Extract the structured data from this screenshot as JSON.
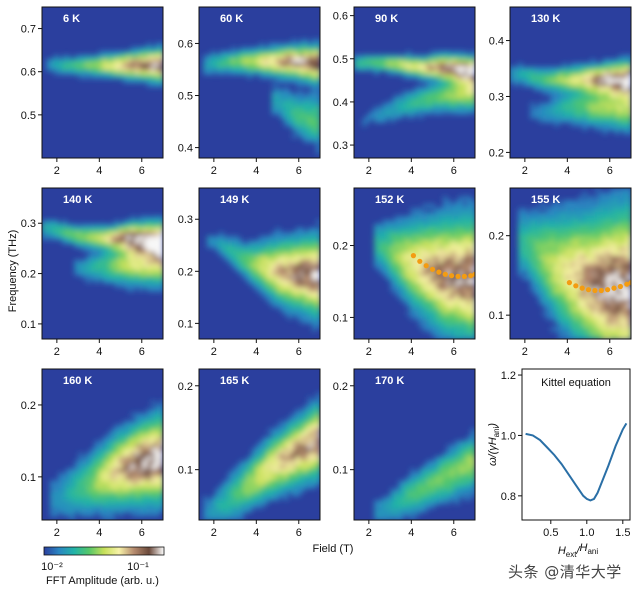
{
  "chart_data": {
    "type": "heatmap",
    "shared_xlabel": "Field (T)",
    "shared_ylabel": "Frequency (THz)",
    "x_ticks": [
      2,
      4,
      6
    ],
    "x_range": [
      1.3,
      7.0
    ],
    "colorbar": {
      "label": "FFT Amplitude (arb. u.)",
      "scale": "log",
      "ticks": [
        "10⁻²",
        "10⁻¹"
      ],
      "colors": [
        "#2b3f9e",
        "#2a86c2",
        "#22b3a8",
        "#55c76a",
        "#c7e05a",
        "#f7f2a8",
        "#b58a6e",
        "#6b4a3b",
        "#ffffff"
      ]
    },
    "panels": [
      {
        "label": "6 K",
        "ylim": [
          0.4,
          0.75
        ],
        "yticks": [
          0.5,
          0.6,
          0.7
        ],
        "yfmt": 1,
        "branches": [
          {
            "x": [
              1.7,
              2.6,
              4.0,
              5.5,
              7.0
            ],
            "y": [
              0.615,
              0.615,
              0.615,
              0.615,
              0.615
            ],
            "w": [
              0.015,
              0.012,
              0.014,
              0.018,
              0.022
            ],
            "a": [
              0.15,
              0.35,
              0.55,
              0.85,
              1.0
            ]
          }
        ]
      },
      {
        "label": "60 K",
        "ylim": [
          0.38,
          0.67
        ],
        "yticks": [
          0.4,
          0.5,
          0.6
        ],
        "yfmt": 1,
        "branches": [
          {
            "x": [
              1.8,
              2.7,
              4.0,
              5.5,
              7.0
            ],
            "y": [
              0.56,
              0.565,
              0.565,
              0.565,
              0.56
            ],
            "w": [
              0.014,
              0.012,
              0.014,
              0.017,
              0.02
            ],
            "a": [
              0.2,
              0.4,
              0.6,
              0.9,
              1.0
            ]
          },
          {
            "x": [
              5.0,
              6.0,
              7.0
            ],
            "y": [
              0.49,
              0.46,
              0.45
            ],
            "w": [
              0.02,
              0.025,
              0.03
            ],
            "a": [
              0.2,
              0.35,
              0.4
            ]
          }
        ]
      },
      {
        "label": "90 K",
        "ylim": [
          0.27,
          0.62
        ],
        "yticks": [
          0.3,
          0.4,
          0.5,
          0.6
        ],
        "yfmt": 1,
        "branches": [
          {
            "x": [
              1.6,
              3.0,
              4.5,
              5.5,
              7.0
            ],
            "y": [
              0.49,
              0.49,
              0.48,
              0.48,
              0.47
            ],
            "w": [
              0.012,
              0.012,
              0.014,
              0.017,
              0.02
            ],
            "a": [
              0.3,
              0.5,
              0.7,
              0.95,
              1.0
            ]
          },
          {
            "x": [
              2.0,
              3.5,
              5.0,
              6.5,
              7.0
            ],
            "y": [
              0.36,
              0.39,
              0.41,
              0.42,
              0.42
            ],
            "w": [
              0.015,
              0.018,
              0.02,
              0.025,
              0.025
            ],
            "a": [
              0.1,
              0.25,
              0.4,
              0.55,
              0.55
            ]
          }
        ]
      },
      {
        "label": "130 K",
        "ylim": [
          0.19,
          0.46
        ],
        "yticks": [
          0.2,
          0.3,
          0.4
        ],
        "yfmt": 1,
        "branches": [
          {
            "x": [
              1.6,
              3.0,
              4.5,
              5.5,
              7.0
            ],
            "y": [
              0.34,
              0.33,
              0.33,
              0.33,
              0.33
            ],
            "w": [
              0.012,
              0.012,
              0.014,
              0.016,
              0.02
            ],
            "a": [
              0.2,
              0.4,
              0.65,
              0.9,
              1.0
            ]
          },
          {
            "x": [
              2.5,
              4.0,
              5.5,
              7.0
            ],
            "y": [
              0.27,
              0.28,
              0.28,
              0.28
            ],
            "w": [
              0.015,
              0.018,
              0.02,
              0.025
            ],
            "a": [
              0.1,
              0.3,
              0.5,
              0.55
            ]
          }
        ]
      },
      {
        "label": "140 K",
        "ylim": [
          0.07,
          0.37
        ],
        "yticks": [
          0.1,
          0.2,
          0.3
        ],
        "yfmt": 1,
        "branches": [
          {
            "x": [
              1.6,
              3.0,
              4.5,
              5.5,
              7.0
            ],
            "y": [
              0.29,
              0.275,
              0.27,
              0.27,
              0.265
            ],
            "w": [
              0.012,
              0.012,
              0.014,
              0.018,
              0.022
            ],
            "a": [
              0.25,
              0.45,
              0.7,
              0.95,
              1.0
            ]
          },
          {
            "x": [
              3.0,
              4.5,
              5.5,
              7.0
            ],
            "y": [
              0.21,
              0.215,
              0.22,
              0.22
            ],
            "w": [
              0.015,
              0.02,
              0.025,
              0.028
            ],
            "a": [
              0.15,
              0.4,
              0.6,
              0.65
            ]
          }
        ]
      },
      {
        "label": "149 K",
        "ylim": [
          0.07,
          0.36
        ],
        "yticks": [
          0.1,
          0.2,
          0.3
        ],
        "yfmt": 1,
        "branches": [
          {
            "x": [
              2.0,
              3.5,
              5.0,
              6.0,
              7.0
            ],
            "y": [
              0.26,
              0.22,
              0.2,
              0.195,
              0.19
            ],
            "w": [
              0.012,
              0.02,
              0.035,
              0.04,
              0.045
            ],
            "a": [
              0.15,
              0.4,
              0.75,
              0.9,
              0.95
            ]
          }
        ]
      },
      {
        "label": "152 K",
        "ylim": [
          0.07,
          0.28
        ],
        "yticks": [
          0.1,
          0.2
        ],
        "yfmt": 1,
        "branches": [
          {
            "x": [
              2.5,
              4.0,
              5.5,
              7.0
            ],
            "y": [
              0.2,
              0.175,
              0.16,
              0.155
            ],
            "w": [
              0.02,
              0.035,
              0.045,
              0.05
            ],
            "a": [
              0.3,
              0.65,
              0.9,
              0.95
            ]
          }
        ],
        "fit": {
          "x": [
            4.1,
            4.4,
            4.7,
            5.0,
            5.3,
            5.6,
            5.9,
            6.2,
            6.5,
            6.8,
            7.0
          ],
          "y": [
            0.186,
            0.178,
            0.172,
            0.167,
            0.163,
            0.16,
            0.158,
            0.157,
            0.157,
            0.158,
            0.16
          ]
        }
      },
      {
        "label": "155 K",
        "ylim": [
          0.07,
          0.26
        ],
        "yticks": [
          0.1,
          0.2
        ],
        "yfmt": 1,
        "branches": [
          {
            "x": [
              2.0,
              3.5,
              5.0,
              6.0,
              7.0
            ],
            "y": [
              0.19,
              0.16,
              0.14,
              0.135,
              0.135
            ],
            "w": [
              0.025,
              0.04,
              0.05,
              0.055,
              0.06
            ],
            "a": [
              0.3,
              0.6,
              0.85,
              1.0,
              0.95
            ]
          }
        ],
        "fit": {
          "x": [
            4.1,
            4.4,
            4.7,
            5.0,
            5.3,
            5.6,
            5.9,
            6.2,
            6.5,
            6.8,
            7.0
          ],
          "y": [
            0.141,
            0.137,
            0.134,
            0.132,
            0.131,
            0.131,
            0.132,
            0.134,
            0.136,
            0.139,
            0.141
          ]
        }
      },
      {
        "label": "160 K",
        "ylim": [
          0.04,
          0.25
        ],
        "yticks": [
          0.1,
          0.2
        ],
        "yfmt": 1,
        "branches": [
          {
            "x": [
              2.0,
              3.5,
              5.0,
              6.0,
              7.0
            ],
            "y": [
              0.07,
              0.09,
              0.11,
              0.12,
              0.125
            ],
            "w": [
              0.02,
              0.025,
              0.03,
              0.032,
              0.035
            ],
            "a": [
              0.15,
              0.4,
              0.8,
              1.0,
              1.0
            ]
          }
        ]
      },
      {
        "label": "165 K",
        "ylim": [
          0.04,
          0.22
        ],
        "yticks": [
          0.1,
          0.2
        ],
        "yfmt": 1,
        "branches": [
          {
            "x": [
              1.8,
              3.0,
              4.5,
              5.5,
              7.0
            ],
            "y": [
              0.05,
              0.07,
              0.1,
              0.115,
              0.135
            ],
            "w": [
              0.015,
              0.018,
              0.02,
              0.022,
              0.025
            ],
            "a": [
              0.15,
              0.35,
              0.65,
              0.8,
              0.9
            ]
          }
        ]
      },
      {
        "label": "170 K",
        "ylim": [
          0.04,
          0.22
        ],
        "yticks": [
          0.1,
          0.2
        ],
        "yfmt": 1,
        "branches": [
          {
            "x": [
              2.5,
              4.0,
              5.5,
              7.0
            ],
            "y": [
              0.05,
              0.07,
              0.09,
              0.11
            ],
            "w": [
              0.012,
              0.015,
              0.017,
              0.02
            ],
            "a": [
              0.15,
              0.35,
              0.45,
              0.5
            ]
          }
        ]
      }
    ],
    "kittel": {
      "type": "line",
      "title": "Kittel equation",
      "xlabel_main": "H",
      "xlabel_sub1": "ext",
      "xlabel_sep": "/",
      "xlabel_main2": "H",
      "xlabel_sub2": "ani",
      "ylabel_main": "ω/(γH",
      "ylabel_sub": "ani",
      "ylabel_end": ")",
      "xlim": [
        0.1,
        1.6
      ],
      "ylim": [
        0.72,
        1.22
      ],
      "xticks": [
        "0.5",
        "1.0",
        "1.5"
      ],
      "yticks": [
        "0.8",
        "1.0",
        "1.2"
      ],
      "color": "#2a6fa6",
      "x": [
        0.15,
        0.25,
        0.35,
        0.45,
        0.55,
        0.65,
        0.75,
        0.85,
        0.95,
        1.0,
        1.05,
        1.1,
        1.15,
        1.2,
        1.3,
        1.4,
        1.5,
        1.55
      ],
      "y": [
        1.005,
        1.0,
        0.985,
        0.96,
        0.935,
        0.905,
        0.87,
        0.835,
        0.8,
        0.79,
        0.785,
        0.79,
        0.81,
        0.84,
        0.9,
        0.965,
        1.02,
        1.04
      ]
    }
  },
  "watermark": "头条 @清华大学"
}
